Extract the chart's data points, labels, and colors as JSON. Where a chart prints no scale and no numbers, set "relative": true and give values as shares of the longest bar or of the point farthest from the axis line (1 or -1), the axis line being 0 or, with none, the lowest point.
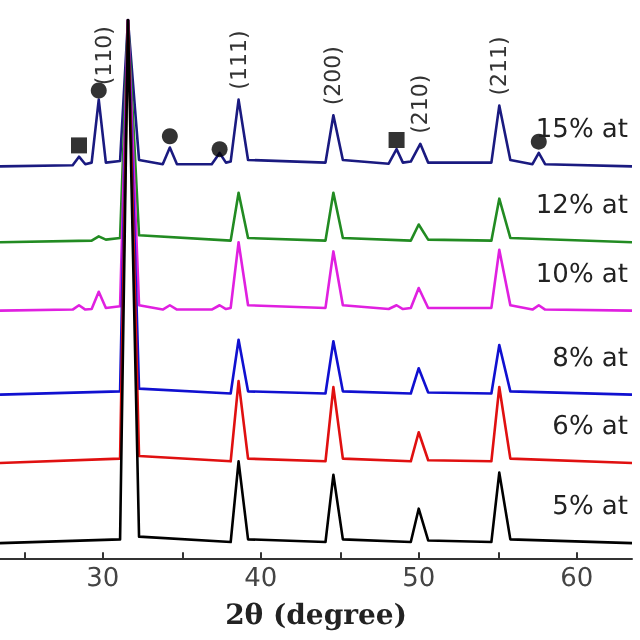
{
  "chart_data": {
    "type": "line",
    "relative": true,
    "xlabel": "2θ (degree)",
    "xlim": [
      23.5,
      63.5
    ],
    "xticks": [
      {
        "value": 25,
        "label": null
      },
      30,
      {
        "value": 35,
        "label": null
      },
      40,
      {
        "value": 45,
        "label": null
      },
      50,
      {
        "value": 55,
        "label": null
      },
      60
    ],
    "grid": false,
    "legend": false,
    "annotations": [
      {
        "text": "(110)",
        "x": 30.1,
        "y": 0.86
      },
      {
        "text": "(111)",
        "x": 38.6,
        "y": 0.852
      },
      {
        "text": "(200)",
        "x": 44.6,
        "y": 0.823
      },
      {
        "text": "(210)",
        "x": 50.1,
        "y": 0.77
      },
      {
        "text": "(211)",
        "x": 55.1,
        "y": 0.841
      }
    ],
    "series": [
      {
        "name": "15% at",
        "color": "#1a1a80",
        "x": [
          23.5,
          28.1,
          28.5,
          28.9,
          29.3,
          29.75,
          30.2,
          31.1,
          31.6,
          32.3,
          33.8,
          34.25,
          34.7,
          36.9,
          37.4,
          37.8,
          38.1,
          38.6,
          39.2,
          44.1,
          44.6,
          45.2,
          48.1,
          48.6,
          49.0,
          49.5,
          50.1,
          50.6,
          54.6,
          55.1,
          55.8,
          57.2,
          57.6,
          58.0,
          63.5
        ],
        "values": [
          0.728,
          0.73,
          0.746,
          0.732,
          0.735,
          0.852,
          0.735,
          0.738,
          1,
          0.74,
          0.732,
          0.763,
          0.732,
          0.732,
          0.753,
          0.735,
          0.737,
          0.852,
          0.74,
          0.735,
          0.823,
          0.74,
          0.733,
          0.76,
          0.735,
          0.737,
          0.77,
          0.735,
          0.735,
          0.841,
          0.74,
          0.732,
          0.753,
          0.732,
          0.728
        ]
      },
      {
        "name": "12% at",
        "color": "#228b22",
        "x": [
          23.5,
          29.3,
          29.75,
          30.2,
          31.1,
          31.6,
          32.3,
          38.1,
          38.6,
          39.2,
          44.1,
          44.6,
          45.2,
          49.5,
          50.0,
          50.6,
          54.6,
          55.1,
          55.8,
          63.5
        ],
        "values": [
          0.587,
          0.59,
          0.598,
          0.592,
          0.595,
          1,
          0.6,
          0.59,
          0.679,
          0.595,
          0.59,
          0.679,
          0.595,
          0.59,
          0.62,
          0.592,
          0.59,
          0.668,
          0.595,
          0.587
        ]
      },
      {
        "name": "10% at",
        "color": "#e020e0",
        "x": [
          23.5,
          28.1,
          28.5,
          28.9,
          29.3,
          29.75,
          30.2,
          31.1,
          31.6,
          32.3,
          33.8,
          34.25,
          34.7,
          36.9,
          37.4,
          37.8,
          38.1,
          38.6,
          39.2,
          44.1,
          44.6,
          45.2,
          48.1,
          48.6,
          49.0,
          49.5,
          50.0,
          50.6,
          54.6,
          55.1,
          55.8,
          57.2,
          57.6,
          58.0,
          63.5
        ],
        "values": [
          0.46,
          0.462,
          0.47,
          0.462,
          0.463,
          0.495,
          0.465,
          0.468,
          1,
          0.47,
          0.462,
          0.47,
          0.462,
          0.462,
          0.47,
          0.463,
          0.465,
          0.587,
          0.47,
          0.465,
          0.57,
          0.47,
          0.463,
          0.47,
          0.463,
          0.465,
          0.502,
          0.465,
          0.465,
          0.573,
          0.47,
          0.462,
          0.47,
          0.462,
          0.46
        ]
      },
      {
        "name": "8% at",
        "color": "#1010d0",
        "x": [
          23.5,
          31.1,
          31.6,
          32.3,
          38.1,
          38.6,
          39.2,
          44.1,
          44.6,
          45.2,
          49.5,
          50.0,
          50.6,
          54.6,
          55.1,
          55.8,
          63.5
        ],
        "values": [
          0.304,
          0.31,
          1,
          0.315,
          0.306,
          0.406,
          0.31,
          0.306,
          0.403,
          0.31,
          0.306,
          0.353,
          0.308,
          0.306,
          0.396,
          0.31,
          0.304
        ]
      },
      {
        "name": "6% at",
        "color": "#e01010",
        "x": [
          23.5,
          31.1,
          31.6,
          32.3,
          38.1,
          38.6,
          39.2,
          44.1,
          44.6,
          45.2,
          49.5,
          50.0,
          50.6,
          54.6,
          55.1,
          55.8,
          63.5
        ],
        "values": [
          0.177,
          0.185,
          1,
          0.19,
          0.18,
          0.329,
          0.185,
          0.18,
          0.318,
          0.185,
          0.18,
          0.234,
          0.182,
          0.18,
          0.318,
          0.185,
          0.177
        ]
      },
      {
        "name": "5% at",
        "color": "#000000",
        "x": [
          23.5,
          31.1,
          31.6,
          32.3,
          38.1,
          38.6,
          39.2,
          44.1,
          44.6,
          45.2,
          49.5,
          50.0,
          50.6,
          54.6,
          55.1,
          55.8,
          63.5
        ],
        "values": [
          0.028,
          0.035,
          1,
          0.04,
          0.03,
          0.18,
          0.035,
          0.03,
          0.155,
          0.035,
          0.03,
          0.092,
          0.033,
          0.03,
          0.159,
          0.035,
          0.028
        ]
      },
      {
        "type": "scatter",
        "marker": "square",
        "color": "#000000",
        "x": [
          28.5,
          48.6
        ],
        "values": [
          0.767,
          0.777
        ]
      },
      {
        "type": "scatter",
        "marker": "circle",
        "color": "#000000",
        "x": [
          29.75,
          34.25,
          37.4,
          57.6
        ],
        "values": [
          0.869,
          0.784,
          0.76,
          0.774
        ]
      }
    ]
  }
}
